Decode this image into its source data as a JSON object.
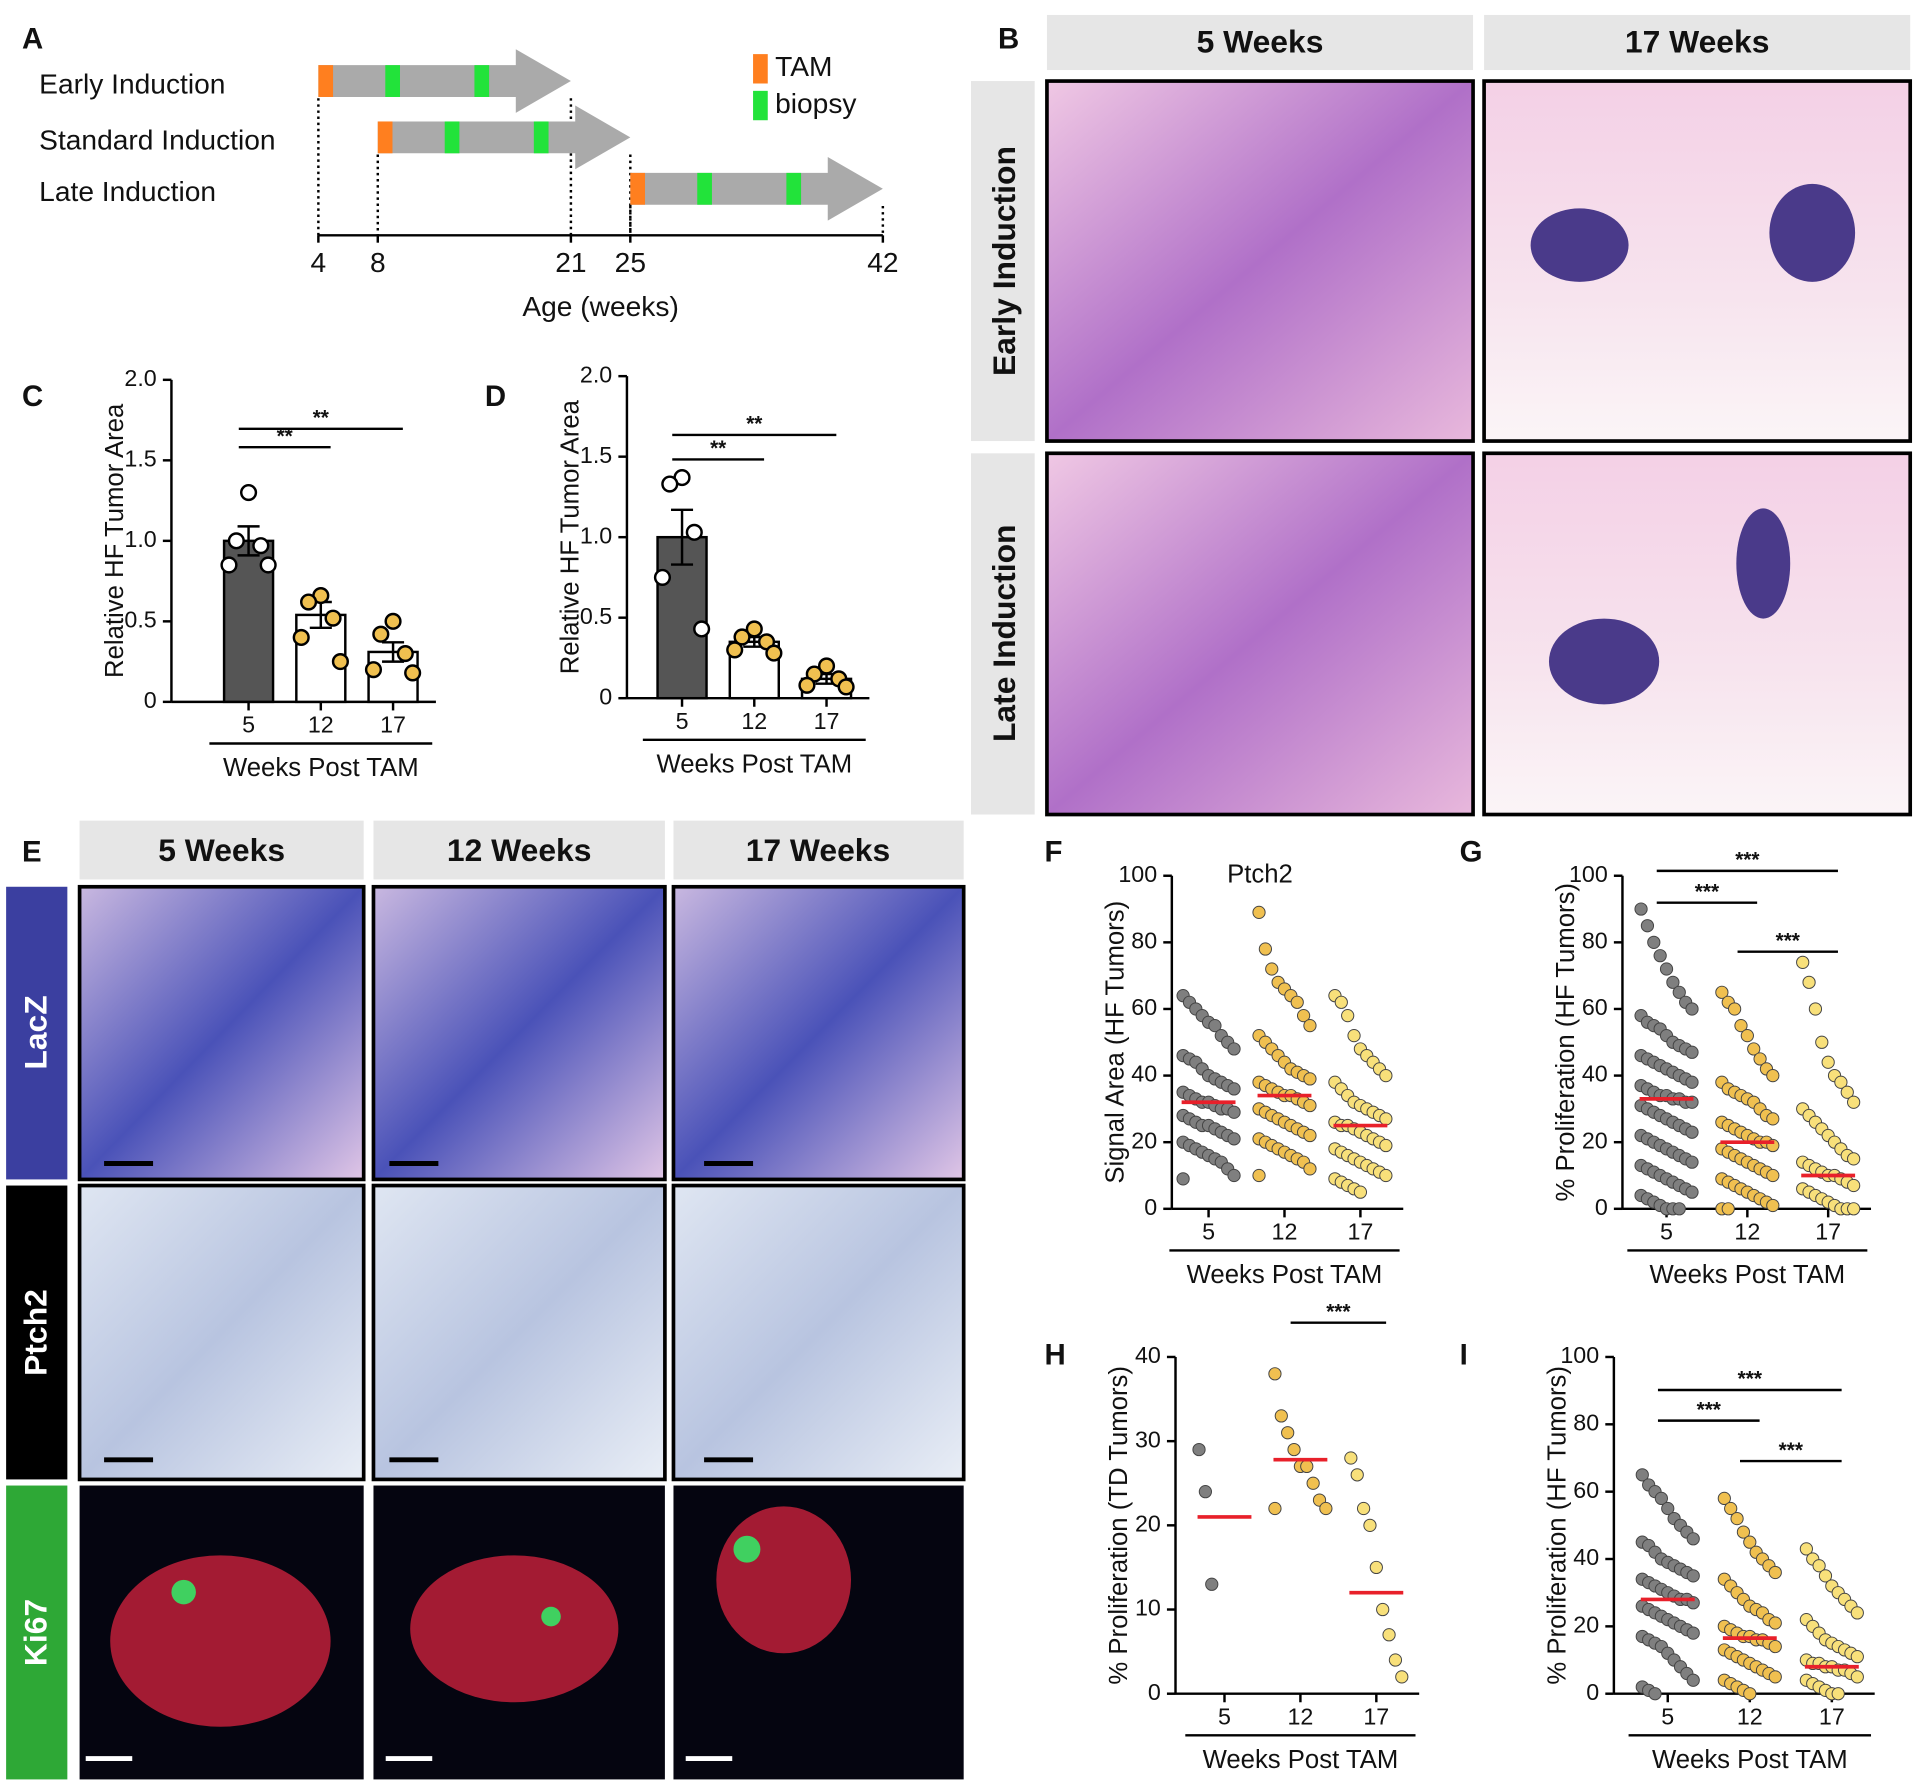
{
  "panel_b": {
    "panel": "B",
    "columns": [
      "5 Weeks",
      "17 Weeks"
    ],
    "rows": [
      "Early Induction",
      "Late Induction"
    ]
  },
  "panel_e": {
    "panel": "E",
    "columns": [
      "5 Weeks",
      "12 Weeks",
      "17 Weeks"
    ],
    "rows": [
      "LacZ",
      "Ptch2",
      "Ki67"
    ]
  },
  "chart_data": [
    {
      "type": "timeline",
      "panel": "A",
      "xlabel": "Age (weeks)",
      "xlim": [
        4,
        42
      ],
      "xticks": [
        4,
        8,
        21,
        25,
        42
      ],
      "arrow_color": "#aaaaaa",
      "rows": [
        {
          "label": "Early Induction",
          "start": 4,
          "end": 21,
          "biopsies": [
            9,
            15
          ]
        },
        {
          "label": "Standard Induction",
          "start": 8,
          "end": 25,
          "biopsies": [
            13,
            19
          ]
        },
        {
          "label": "Late Induction",
          "start": 25,
          "end": 42,
          "biopsies": [
            30,
            36
          ]
        }
      ],
      "legend": [
        {
          "label": "TAM",
          "color": "#ff7f1f"
        },
        {
          "label": "biopsy",
          "color": "#22e33a"
        }
      ]
    },
    {
      "type": "bar",
      "panel": "C",
      "ylabel": "Relative HF Tumor Area",
      "xlabel": "Weeks Post TAM",
      "categories": [
        "5",
        "12",
        "17"
      ],
      "values": [
        1.0,
        0.54,
        0.31
      ],
      "errors": [
        0.09,
        0.08,
        0.06
      ],
      "colors": [
        "#555555",
        "#ffffff",
        "#ffffff"
      ],
      "point_colors": [
        "#ffffff",
        "#f0c050",
        "#f0c050"
      ],
      "points": [
        [
          1.3,
          1.0,
          0.97,
          0.85,
          0.85
        ],
        [
          0.66,
          0.62,
          0.52,
          0.4,
          0.25
        ],
        [
          0.5,
          0.42,
          0.3,
          0.2,
          0.18
        ]
      ],
      "ylim": [
        0,
        2
      ],
      "yticks": [
        0,
        0.5,
        {
          "value": 1,
          "label": "1.0"
        },
        1.5,
        {
          "value": 2,
          "label": "2.0"
        }
      ],
      "significance": [
        {
          "label": "**",
          "between": [
            "5",
            "12"
          ]
        },
        {
          "label": "**",
          "between": [
            "5",
            "17"
          ]
        }
      ]
    },
    {
      "type": "bar",
      "panel": "D",
      "ylabel": "Relative HF Tumor Area",
      "xlabel": "Weeks Post TAM",
      "categories": [
        "5",
        "12",
        "17"
      ],
      "values": [
        1.0,
        0.35,
        0.12
      ],
      "errors": [
        0.17,
        0.03,
        0.03
      ],
      "colors": [
        "#555555",
        "#ffffff",
        "#ffffff"
      ],
      "point_colors": [
        "#ffffff",
        "#f0c050",
        "#f0c050"
      ],
      "points": [
        [
          1.37,
          1.33,
          1.03,
          0.75,
          0.43
        ],
        [
          0.43,
          0.38,
          0.35,
          0.3,
          0.28
        ],
        [
          0.2,
          0.15,
          0.12,
          0.08,
          0.07
        ]
      ],
      "ylim": [
        0,
        2
      ],
      "yticks": [
        0,
        0.5,
        {
          "value": 1,
          "label": "1.0"
        },
        1.5,
        {
          "value": 2,
          "label": "2.0"
        }
      ],
      "significance": [
        {
          "label": "**",
          "between": [
            "5",
            "12"
          ]
        },
        {
          "label": "**",
          "between": [
            "5",
            "17"
          ]
        }
      ]
    },
    {
      "type": "strip",
      "panel": "F",
      "title": "Ptch2",
      "ylabel": "Signal Area (HF Tumors)",
      "xlabel": "Weeks Post TAM",
      "categories": [
        "5",
        "12",
        "17"
      ],
      "colors": [
        "#7f7f7f",
        "#f0c050",
        "#f8e07a"
      ],
      "medians": [
        32,
        34,
        25
      ],
      "median_color": "#e8202a",
      "points": [
        [
          64,
          62,
          60,
          58,
          56,
          55,
          52,
          50,
          48,
          46,
          45,
          44,
          42,
          40,
          39,
          38,
          37,
          36,
          35,
          34,
          33,
          32,
          32,
          31,
          30,
          30,
          29,
          28,
          27,
          26,
          25,
          25,
          24,
          23,
          22,
          21,
          20,
          19,
          18,
          17,
          16,
          15,
          14,
          12,
          10,
          9
        ],
        [
          89,
          78,
          72,
          68,
          66,
          64,
          62,
          58,
          55,
          52,
          50,
          48,
          46,
          44,
          42,
          41,
          40,
          39,
          38,
          37,
          36,
          35,
          34,
          34,
          33,
          32,
          31,
          30,
          29,
          28,
          27,
          26,
          25,
          24,
          23,
          22,
          21,
          20,
          19,
          18,
          17,
          16,
          15,
          14,
          12,
          10
        ],
        [
          64,
          62,
          58,
          52,
          48,
          46,
          44,
          42,
          40,
          38,
          36,
          34,
          32,
          31,
          30,
          29,
          28,
          27,
          26,
          25,
          25,
          24,
          23,
          22,
          21,
          20,
          19,
          18,
          17,
          16,
          15,
          14,
          13,
          12,
          11,
          10,
          9,
          8,
          7,
          6,
          5
        ]
      ],
      "ylim": [
        0,
        100
      ],
      "yticks": [
        0,
        20,
        40,
        60,
        80,
        100
      ],
      "significance": []
    },
    {
      "type": "strip",
      "panel": "G",
      "ylabel": "% Proliferation (HF Tumors)",
      "xlabel": "Weeks Post TAM",
      "categories": [
        "5",
        "12",
        "17"
      ],
      "colors": [
        "#7f7f7f",
        "#f0c050",
        "#f8e07a"
      ],
      "medians": [
        33,
        20,
        10
      ],
      "median_color": "#e8202a",
      "points": [
        [
          90,
          85,
          80,
          76,
          72,
          68,
          65,
          62,
          60,
          58,
          56,
          55,
          54,
          52,
          50,
          49,
          48,
          47,
          46,
          45,
          44,
          43,
          42,
          41,
          40,
          39,
          38,
          37,
          36,
          35,
          34,
          34,
          33,
          33,
          32,
          32,
          31,
          30,
          29,
          28,
          27,
          26,
          25,
          24,
          23,
          22,
          21,
          20,
          19,
          18,
          17,
          16,
          15,
          14,
          13,
          12,
          11,
          10,
          9,
          8,
          7,
          6,
          5,
          4,
          3,
          2,
          1,
          0,
          0,
          0
        ],
        [
          65,
          62,
          60,
          55,
          52,
          48,
          45,
          42,
          40,
          38,
          36,
          35,
          34,
          33,
          32,
          30,
          28,
          27,
          26,
          25,
          24,
          23,
          22,
          21,
          20,
          20,
          19,
          18,
          17,
          16,
          15,
          14,
          13,
          12,
          11,
          10,
          9,
          8,
          7,
          6,
          5,
          4,
          3,
          2,
          1,
          0,
          0
        ],
        [
          74,
          68,
          60,
          50,
          44,
          40,
          38,
          35,
          32,
          30,
          28,
          26,
          24,
          22,
          20,
          18,
          16,
          15,
          14,
          13,
          12,
          11,
          10,
          10,
          9,
          8,
          7,
          6,
          5,
          4,
          3,
          2,
          1,
          0,
          0,
          0
        ]
      ],
      "ylim": [
        0,
        100
      ],
      "yticks": [
        0,
        20,
        40,
        60,
        80,
        100
      ],
      "significance": [
        {
          "label": "***",
          "between": [
            "5",
            "12"
          ]
        },
        {
          "label": "***",
          "between": [
            "5",
            "17"
          ]
        },
        {
          "label": "***",
          "between": [
            "12",
            "17"
          ]
        }
      ]
    },
    {
      "type": "strip",
      "panel": "H",
      "ylabel": "% Proliferation (TD Tumors)",
      "xlabel": "Weeks Post TAM",
      "categories": [
        "5",
        "12",
        "17"
      ],
      "colors": [
        "#7f7f7f",
        "#f0c050",
        "#f8e07a"
      ],
      "medians": [
        21,
        27.8,
        12
      ],
      "median_color": "#e8202a",
      "points": [
        [
          29,
          24,
          13
        ],
        [
          38,
          33,
          31,
          29,
          27,
          27,
          25,
          23,
          22,
          22
        ],
        [
          28,
          26,
          22,
          20,
          15,
          10,
          7,
          4,
          2
        ]
      ],
      "ylim": [
        0,
        40
      ],
      "yticks": [
        0,
        10,
        20,
        30,
        40
      ],
      "significance": [
        {
          "label": "***",
          "between": [
            "12",
            "17"
          ]
        }
      ]
    },
    {
      "type": "strip",
      "panel": "I",
      "ylabel": "% Proliferation (HF Tumors)",
      "xlabel": "Weeks Post TAM",
      "categories": [
        "5",
        "12",
        "17"
      ],
      "colors": [
        "#7f7f7f",
        "#f0c050",
        "#f8e07a"
      ],
      "medians": [
        28,
        16.5,
        8
      ],
      "median_color": "#e8202a",
      "points": [
        [
          65,
          62,
          60,
          58,
          55,
          52,
          50,
          48,
          46,
          45,
          44,
          42,
          40,
          39,
          38,
          37,
          36,
          35,
          34,
          33,
          32,
          31,
          30,
          29,
          28,
          28,
          27,
          26,
          25,
          24,
          23,
          22,
          21,
          20,
          19,
          18,
          17,
          16,
          15,
          14,
          12,
          10,
          8,
          6,
          4,
          2,
          1,
          0
        ],
        [
          58,
          55,
          52,
          48,
          45,
          42,
          40,
          38,
          36,
          34,
          32,
          30,
          28,
          26,
          25,
          24,
          22,
          21,
          20,
          19,
          18,
          17,
          17,
          16,
          16,
          15,
          14,
          13,
          12,
          11,
          10,
          9,
          8,
          7,
          6,
          5,
          4,
          3,
          2,
          1,
          0
        ],
        [
          43,
          40,
          38,
          35,
          32,
          30,
          28,
          26,
          24,
          22,
          20,
          18,
          16,
          15,
          14,
          13,
          12,
          11,
          10,
          9,
          9,
          8,
          8,
          7,
          7,
          6,
          5,
          4,
          3,
          2,
          1,
          0,
          0
        ]
      ],
      "ylim": [
        0,
        100
      ],
      "yticks": [
        0,
        20,
        40,
        60,
        80,
        100
      ],
      "significance": [
        {
          "label": "***",
          "between": [
            "5",
            "12"
          ]
        },
        {
          "label": "***",
          "between": [
            "5",
            "17"
          ]
        },
        {
          "label": "***",
          "between": [
            "12",
            "17"
          ]
        }
      ]
    }
  ]
}
